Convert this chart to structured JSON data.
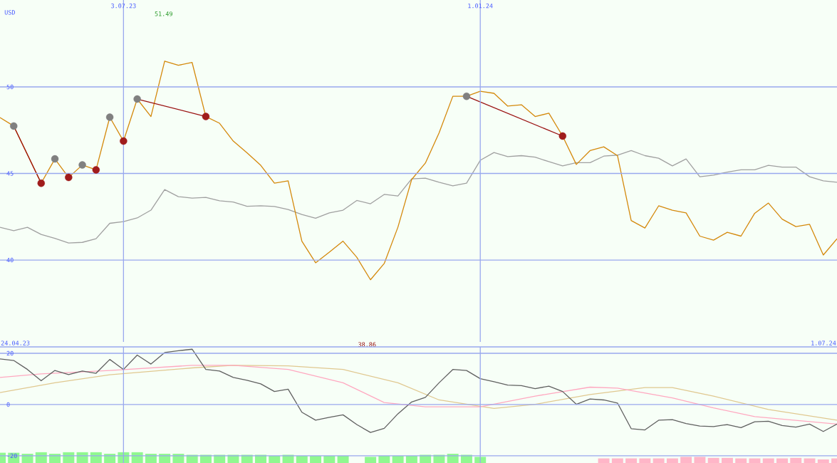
{
  "chart_data": [
    {
      "type": "line",
      "ylabel": "USD",
      "xlim": [
        "2023-05-01",
        "2024-07-01"
      ],
      "ylim": [
        35.27,
        55.02
      ],
      "yticks": [
        40,
        45,
        50
      ],
      "xticks": [
        {
          "value": "2023-07-03",
          "label": "3.07.23"
        },
        {
          "value": "2024-01-01",
          "label": "1.01.24"
        }
      ],
      "grid": true,
      "x": [
        "2023-05-01",
        "2023-05-08",
        "2023-05-15",
        "2023-05-22",
        "2023-05-29",
        "2023-06-05",
        "2023-06-12",
        "2023-06-19",
        "2023-06-26",
        "2023-07-03",
        "2023-07-10",
        "2023-07-17",
        "2023-07-24",
        "2023-07-31",
        "2023-08-07",
        "2023-08-14",
        "2023-08-21",
        "2023-08-28",
        "2023-09-04",
        "2023-09-11",
        "2023-09-18",
        "2023-09-25",
        "2023-10-02",
        "2023-10-09",
        "2023-10-16",
        "2023-10-23",
        "2023-10-30",
        "2023-11-06",
        "2023-11-13",
        "2023-11-20",
        "2023-11-27",
        "2023-12-04",
        "2023-12-11",
        "2023-12-18",
        "2023-12-25",
        "2024-01-01",
        "2024-01-08",
        "2024-01-15",
        "2024-01-22",
        "2024-01-29",
        "2024-02-05",
        "2024-02-12",
        "2024-02-19",
        "2024-02-26",
        "2024-03-04",
        "2024-03-11",
        "2024-03-18",
        "2024-03-25",
        "2024-04-01",
        "2024-04-08",
        "2024-04-15",
        "2024-04-22",
        "2024-04-29",
        "2024-05-06",
        "2024-05-13",
        "2024-05-20",
        "2024-05-27",
        "2024-06-03",
        "2024-06-10",
        "2024-06-17",
        "2024-06-24",
        "2024-07-01"
      ],
      "series": [
        {
          "color": "#a0a0a0",
          "values": [
            41.89,
            41.69,
            41.89,
            41.48,
            41.25,
            40.98,
            41.02,
            41.23,
            42.12,
            42.22,
            42.43,
            42.88,
            44.07,
            43.66,
            43.58,
            43.62,
            43.42,
            43.35,
            43.1,
            43.13,
            43.09,
            42.92,
            42.63,
            42.41,
            42.72,
            42.88,
            43.44,
            43.25,
            43.79,
            43.7,
            44.69,
            44.73,
            44.49,
            44.29,
            44.44,
            45.76,
            46.21,
            45.97,
            46.03,
            45.94,
            45.68,
            45.44,
            45.62,
            45.62,
            46.0,
            46.06,
            46.32,
            46.03,
            45.88,
            45.44,
            45.84,
            44.81,
            44.9,
            45.08,
            45.21,
            45.21,
            45.47,
            45.37,
            45.37,
            44.81,
            44.57,
            44.49
          ]
        },
        {
          "color": "#d4890c",
          "values": [
            48.23,
            47.74,
            46.09,
            44.44,
            45.84,
            44.77,
            45.49,
            45.21,
            48.25,
            46.87,
            49.3,
            48.29,
            51.49,
            51.25,
            51.41,
            48.29,
            47.9,
            46.87,
            46.19,
            45.47,
            44.44,
            44.57,
            41.09,
            39.84,
            40.45,
            41.09,
            40.16,
            38.86,
            39.8,
            41.9,
            44.65,
            45.6,
            47.35,
            49.46,
            49.46,
            49.75,
            49.63,
            48.89,
            48.97,
            48.29,
            48.48,
            47.16,
            45.52,
            46.32,
            46.54,
            46.03,
            42.28,
            41.85,
            43.13,
            42.88,
            42.72,
            41.38,
            41.15,
            41.6,
            41.38,
            42.7,
            43.29,
            42.36,
            41.93,
            42.06,
            40.29,
            41.23
          ]
        },
        {
          "color": "#9a1010",
          "x": [
            "2023-05-08",
            "2023-05-22"
          ],
          "values": [
            47.74,
            44.44
          ]
        },
        {
          "color": "#9a1010",
          "x": [
            "2023-07-10",
            "2023-08-14"
          ],
          "values": [
            49.3,
            48.29
          ]
        },
        {
          "color": "#9a1010",
          "x": [
            "2023-12-25",
            "2024-02-12"
          ],
          "values": [
            49.46,
            47.16
          ]
        },
        {
          "type": "scatter",
          "marker": "circle",
          "color": "#808080",
          "x": [
            "2023-05-08",
            "2023-05-29",
            "2023-06-12",
            "2023-06-26",
            "2023-07-10",
            "2023-12-25"
          ],
          "values": [
            47.74,
            45.84,
            45.49,
            48.25,
            49.3,
            49.46
          ]
        },
        {
          "type": "scatter",
          "marker": "circle",
          "color": "#a01c1c",
          "x": [
            "2023-05-22",
            "2023-06-05",
            "2023-06-19",
            "2023-07-03",
            "2023-08-14",
            "2024-02-12"
          ],
          "values": [
            44.44,
            44.77,
            45.21,
            46.87,
            48.29,
            47.16
          ]
        }
      ],
      "annotations": [
        "51.49",
        "38.86"
      ]
    },
    {
      "type": "line",
      "xlim": [
        "2023-05-01",
        "2024-07-01"
      ],
      "ylim": [
        -22.8,
        22.5
      ],
      "yticks": [
        -20,
        0,
        20
      ],
      "xticks": [
        {
          "value": "2023-07-03",
          "label": null
        },
        {
          "value": "2024-01-01",
          "label": null
        }
      ],
      "grid": true,
      "tick_labels": "y",
      "x": [
        "2023-05-01",
        "2023-05-08",
        "2023-05-15",
        "2023-05-22",
        "2023-05-29",
        "2023-06-05",
        "2023-06-12",
        "2023-06-19",
        "2023-06-26",
        "2023-07-03",
        "2023-07-10",
        "2023-07-17",
        "2023-07-24",
        "2023-07-31",
        "2023-08-07",
        "2023-08-14",
        "2023-08-21",
        "2023-08-28",
        "2023-09-04",
        "2023-09-11",
        "2023-09-18",
        "2023-09-25",
        "2023-10-02",
        "2023-10-09",
        "2023-10-16",
        "2023-10-23",
        "2023-10-30",
        "2023-11-06",
        "2023-11-13",
        "2023-11-20",
        "2023-11-27",
        "2023-12-04",
        "2023-12-11",
        "2023-12-18",
        "2023-12-25",
        "2024-01-01",
        "2024-01-08",
        "2024-01-15",
        "2024-01-22",
        "2024-01-29",
        "2024-02-05",
        "2024-02-12",
        "2024-02-19",
        "2024-02-26",
        "2024-03-04",
        "2024-03-11",
        "2024-03-18",
        "2024-03-25",
        "2024-04-01",
        "2024-04-08",
        "2024-04-15",
        "2024-04-22",
        "2024-04-29",
        "2024-05-06",
        "2024-05-13",
        "2024-05-20",
        "2024-05-27",
        "2024-06-03",
        "2024-06-10",
        "2024-06-17",
        "2024-06-24",
        "2024-07-01"
      ],
      "series": [
        {
          "type": "bar",
          "color": "#90f890",
          "base": [
            -22.8,
            -22.8,
            -22.8,
            -22.8,
            -22.8,
            -22.8,
            -22.8,
            -22.8,
            -22.8,
            -22.8,
            -22.8,
            -22.8,
            -22.8,
            -22.8,
            -22.8,
            -22.8,
            -22.8,
            -22.8,
            -22.8,
            -22.8,
            -22.8,
            -22.8,
            -22.8,
            -22.8,
            -22.8,
            -22.8,
            null,
            -22.8,
            -22.8,
            -22.8,
            -22.8,
            -22.8,
            -22.8,
            -22.8,
            -22.8,
            -22.8,
            null,
            null,
            null,
            null,
            null,
            null,
            null,
            null,
            null,
            null,
            null,
            null,
            null,
            null,
            null,
            null,
            null,
            null,
            null,
            null,
            null,
            null,
            null,
            null,
            null,
            null
          ],
          "values": [
            4.0,
            4.0,
            3.6,
            4.2,
            3.6,
            4.2,
            4.2,
            4.2,
            3.6,
            4.2,
            4.2,
            3.6,
            3.6,
            3.6,
            3.2,
            3.2,
            3.2,
            3.2,
            3.2,
            3.2,
            2.8,
            3.2,
            2.8,
            2.8,
            2.8,
            2.8,
            null,
            2.4,
            2.8,
            2.8,
            2.8,
            3.2,
            3.2,
            3.6,
            3.2,
            2.4,
            null,
            null,
            null,
            null,
            null,
            null,
            null,
            null,
            null,
            null,
            null,
            null,
            null,
            null,
            null,
            null,
            null,
            null,
            null,
            null,
            null,
            null,
            null,
            null,
            null,
            null
          ]
        },
        {
          "type": "bar",
          "color": "#ffb6c8",
          "base": [
            null,
            null,
            null,
            null,
            null,
            null,
            null,
            null,
            null,
            null,
            null,
            null,
            null,
            null,
            null,
            null,
            null,
            null,
            null,
            null,
            null,
            null,
            null,
            null,
            null,
            null,
            null,
            null,
            null,
            null,
            null,
            null,
            null,
            null,
            null,
            null,
            null,
            null,
            null,
            null,
            null,
            null,
            null,
            null,
            -22.8,
            -22.8,
            -22.8,
            -22.8,
            -22.8,
            -22.8,
            -22.8,
            -22.8,
            -22.8,
            -22.8,
            -22.8,
            -22.8,
            -22.8,
            -22.8,
            -22.8,
            -22.8,
            -22.8,
            -22.8
          ],
          "values": [
            null,
            null,
            null,
            null,
            null,
            null,
            null,
            null,
            null,
            null,
            null,
            null,
            null,
            null,
            null,
            null,
            null,
            null,
            null,
            null,
            null,
            null,
            null,
            null,
            null,
            null,
            null,
            null,
            null,
            null,
            null,
            null,
            null,
            null,
            null,
            null,
            null,
            null,
            null,
            null,
            null,
            null,
            null,
            null,
            1.8,
            1.8,
            1.8,
            1.8,
            1.8,
            1.8,
            2.4,
            2.4,
            2.0,
            2.0,
            1.8,
            1.8,
            1.8,
            1.8,
            2.0,
            1.8,
            1.4,
            1.8
          ]
        },
        {
          "color": "#e0c890",
          "x": [
            "2023-05-01",
            "2023-05-29",
            "2023-06-26",
            "2023-08-07",
            "2023-08-28",
            "2023-09-25",
            "2023-10-23",
            "2023-11-20",
            "2023-12-11",
            "2024-01-08",
            "2024-01-29",
            "2024-02-26",
            "2024-03-25",
            "2024-04-08",
            "2024-04-29",
            "2024-05-27",
            "2024-07-01"
          ],
          "values": [
            4.7,
            8.5,
            11.6,
            14.3,
            15.3,
            15.1,
            13.7,
            8.5,
            1.8,
            -1.5,
            0.1,
            3.9,
            6.6,
            6.6,
            3.3,
            -1.9,
            -6.1
          ]
        },
        {
          "color": "#ffa8c0",
          "x": [
            "2023-05-01",
            "2023-05-22",
            "2023-06-26",
            "2023-08-07",
            "2023-08-28",
            "2023-09-25",
            "2023-10-23",
            "2023-11-13",
            "2023-12-04",
            "2024-01-01",
            "2024-01-29",
            "2024-02-26",
            "2024-03-11",
            "2024-04-08",
            "2024-04-29",
            "2024-05-20",
            "2024-07-01"
          ],
          "values": [
            10.6,
            12.0,
            13.3,
            15.3,
            15.3,
            13.7,
            8.5,
            0.8,
            -0.9,
            -0.9,
            3.3,
            6.8,
            6.4,
            2.6,
            -1.3,
            -4.7,
            -7.6
          ]
        },
        {
          "color": "#606060",
          "values": [
            17.8,
            17.2,
            13.7,
            9.3,
            13.3,
            11.7,
            13.1,
            12.2,
            17.6,
            13.7,
            19.3,
            15.8,
            20.3,
            21.0,
            21.6,
            13.7,
            13.1,
            10.6,
            9.5,
            8.1,
            5.1,
            6.0,
            -3.0,
            -6.1,
            -5.0,
            -4.0,
            -7.8,
            -10.9,
            -9.3,
            -3.6,
            1.0,
            2.8,
            8.5,
            13.7,
            13.3,
            10.1,
            8.9,
            7.6,
            7.4,
            6.2,
            7.2,
            5.1,
            0.1,
            2.2,
            1.8,
            0.6,
            -9.4,
            -9.9,
            -6.1,
            -5.9,
            -7.4,
            -8.4,
            -8.6,
            -7.8,
            -9.0,
            -6.7,
            -6.5,
            -8.2,
            -8.8,
            -7.6,
            -10.5,
            -7.6
          ]
        }
      ],
      "annotations": [
        "24.04.23",
        "1.07.24"
      ]
    }
  ]
}
